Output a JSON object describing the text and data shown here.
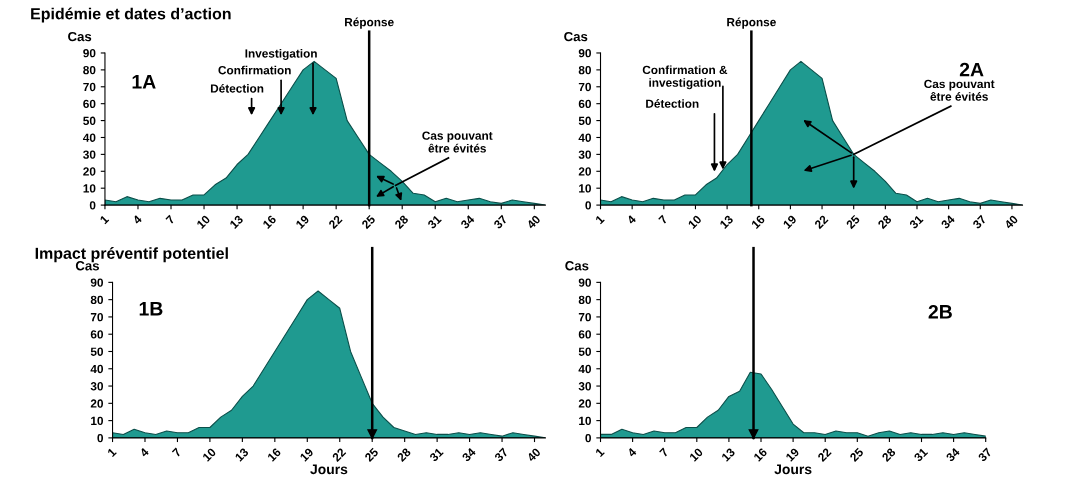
{
  "chart_data": [
    {
      "type": "area",
      "title": "Epidémie et dates d’action",
      "ylabel": "Cas",
      "x": [
        1,
        2,
        3,
        4,
        5,
        6,
        7,
        8,
        9,
        10,
        11,
        12,
        13,
        14,
        15,
        16,
        17,
        18,
        19,
        20,
        21,
        22,
        23,
        24,
        25,
        26,
        27,
        28,
        29,
        30,
        31,
        32,
        33,
        34,
        35,
        36,
        37,
        38,
        39,
        40,
        41
      ],
      "values": [
        3,
        2,
        5,
        3,
        2,
        4,
        3,
        3,
        6,
        6,
        12,
        16,
        24,
        30,
        40,
        50,
        60,
        70,
        80,
        85,
        80,
        75,
        50,
        40,
        30,
        25,
        20,
        14,
        7,
        6,
        2,
        4,
        2,
        3,
        4,
        2,
        1,
        3,
        2,
        1,
        0
      ],
      "color": "#1f9a90",
      "xlim": [
        1,
        41
      ],
      "xticks": [
        1,
        4,
        7,
        10,
        13,
        16,
        19,
        22,
        25,
        28,
        31,
        34,
        37,
        40
      ],
      "ylim": [
        0,
        90
      ],
      "yticks": [
        0,
        10,
        20,
        30,
        40,
        50,
        60,
        70,
        80,
        90
      ],
      "ref_lines": [
        {
          "axis": "x",
          "value": 25,
          "label": "Réponse"
        }
      ],
      "annotations": [
        "1A",
        "Cas pouvant être évités",
        "Détection",
        "Confirmation",
        "Investigation"
      ]
    },
    {
      "type": "area",
      "ylabel": "Cas",
      "x": [
        1,
        2,
        3,
        4,
        5,
        6,
        7,
        8,
        9,
        10,
        11,
        12,
        13,
        14,
        15,
        16,
        17,
        18,
        19,
        20,
        21,
        22,
        23,
        24,
        25,
        26,
        27,
        28,
        29,
        30,
        31,
        32,
        33,
        34,
        35,
        36,
        37,
        38,
        39,
        40,
        41
      ],
      "values": [
        3,
        2,
        5,
        3,
        2,
        4,
        3,
        3,
        6,
        6,
        12,
        16,
        24,
        30,
        40,
        50,
        60,
        70,
        80,
        85,
        80,
        75,
        50,
        40,
        30,
        25,
        20,
        14,
        7,
        6,
        2,
        4,
        2,
        3,
        4,
        2,
        1,
        3,
        2,
        1,
        0
      ],
      "color": "#1f9a90",
      "xlim": [
        1,
        41
      ],
      "xticks": [
        1,
        4,
        7,
        10,
        13,
        16,
        19,
        22,
        25,
        28,
        31,
        34,
        37,
        40
      ],
      "ylim": [
        0,
        90
      ],
      "yticks": [
        0,
        10,
        20,
        30,
        40,
        50,
        60,
        70,
        80,
        90
      ],
      "ref_lines": [
        {
          "axis": "x",
          "value": 15.3,
          "label": "Réponse"
        }
      ],
      "annotations": [
        "2A",
        {
          "text": "Cas pouvant être évités",
          "x": 25,
          "y": 30
        },
        "Détection",
        {
          "text": "Confirmation & investigation",
          "x": 12.6,
          "y": 21
        }
      ]
    },
    {
      "type": "area",
      "title": "Impact préventif potentiel",
      "ylabel": "Cas",
      "xlabel": "Jours",
      "x": [
        1,
        2,
        3,
        4,
        5,
        6,
        7,
        8,
        9,
        10,
        11,
        12,
        13,
        14,
        15,
        16,
        17,
        18,
        19,
        20,
        21,
        22,
        23,
        24,
        25,
        26,
        27,
        28,
        29,
        30,
        31,
        32,
        33,
        34,
        35,
        36,
        37,
        38,
        39,
        40,
        41
      ],
      "values": [
        3,
        2,
        5,
        3,
        2,
        4,
        3,
        3,
        6,
        6,
        12,
        16,
        24,
        30,
        40,
        50,
        60,
        70,
        80,
        85,
        80,
        75,
        50,
        35,
        20,
        12,
        6,
        4,
        2,
        3,
        2,
        2,
        3,
        2,
        3,
        2,
        1,
        3,
        2,
        1,
        0
      ],
      "color": "#1f9a90",
      "xlim": [
        1,
        41
      ],
      "xticks": [
        1,
        4,
        7,
        10,
        13,
        16,
        19,
        22,
        25,
        28,
        31,
        34,
        37,
        40
      ],
      "ylim": [
        0,
        90
      ],
      "yticks": [
        0,
        10,
        20,
        30,
        40,
        50,
        60,
        70,
        80,
        90
      ],
      "ref_lines": [
        {
          "axis": "x",
          "value": 25
        }
      ],
      "annotations": [
        "1B"
      ]
    },
    {
      "type": "area",
      "ylabel": "Cas",
      "xlabel": "Jours",
      "x": [
        1,
        2,
        3,
        4,
        5,
        6,
        7,
        8,
        9,
        10,
        11,
        12,
        13,
        14,
        15,
        16,
        17,
        18,
        19,
        20,
        21,
        22,
        23,
        24,
        25,
        26,
        27,
        28,
        29,
        30,
        31,
        32,
        33,
        34,
        35,
        36,
        37
      ],
      "values": [
        2,
        2,
        5,
        3,
        2,
        4,
        3,
        3,
        6,
        6,
        12,
        16,
        24,
        27,
        38,
        37,
        28,
        18,
        8,
        3,
        3,
        2,
        4,
        3,
        3,
        1,
        3,
        4,
        2,
        3,
        2,
        2,
        3,
        2,
        3,
        2,
        1
      ],
      "color": "#1f9a90",
      "xlim": [
        1,
        37
      ],
      "xticks": [
        1,
        4,
        7,
        10,
        13,
        16,
        19,
        22,
        25,
        28,
        31,
        34,
        37
      ],
      "ylim": [
        0,
        90
      ],
      "yticks": [
        0,
        10,
        20,
        30,
        40,
        50,
        60,
        70,
        80,
        90
      ],
      "ref_lines": [
        {
          "axis": "x",
          "value": 15.3
        }
      ],
      "annotations": [
        "2B"
      ]
    }
  ]
}
